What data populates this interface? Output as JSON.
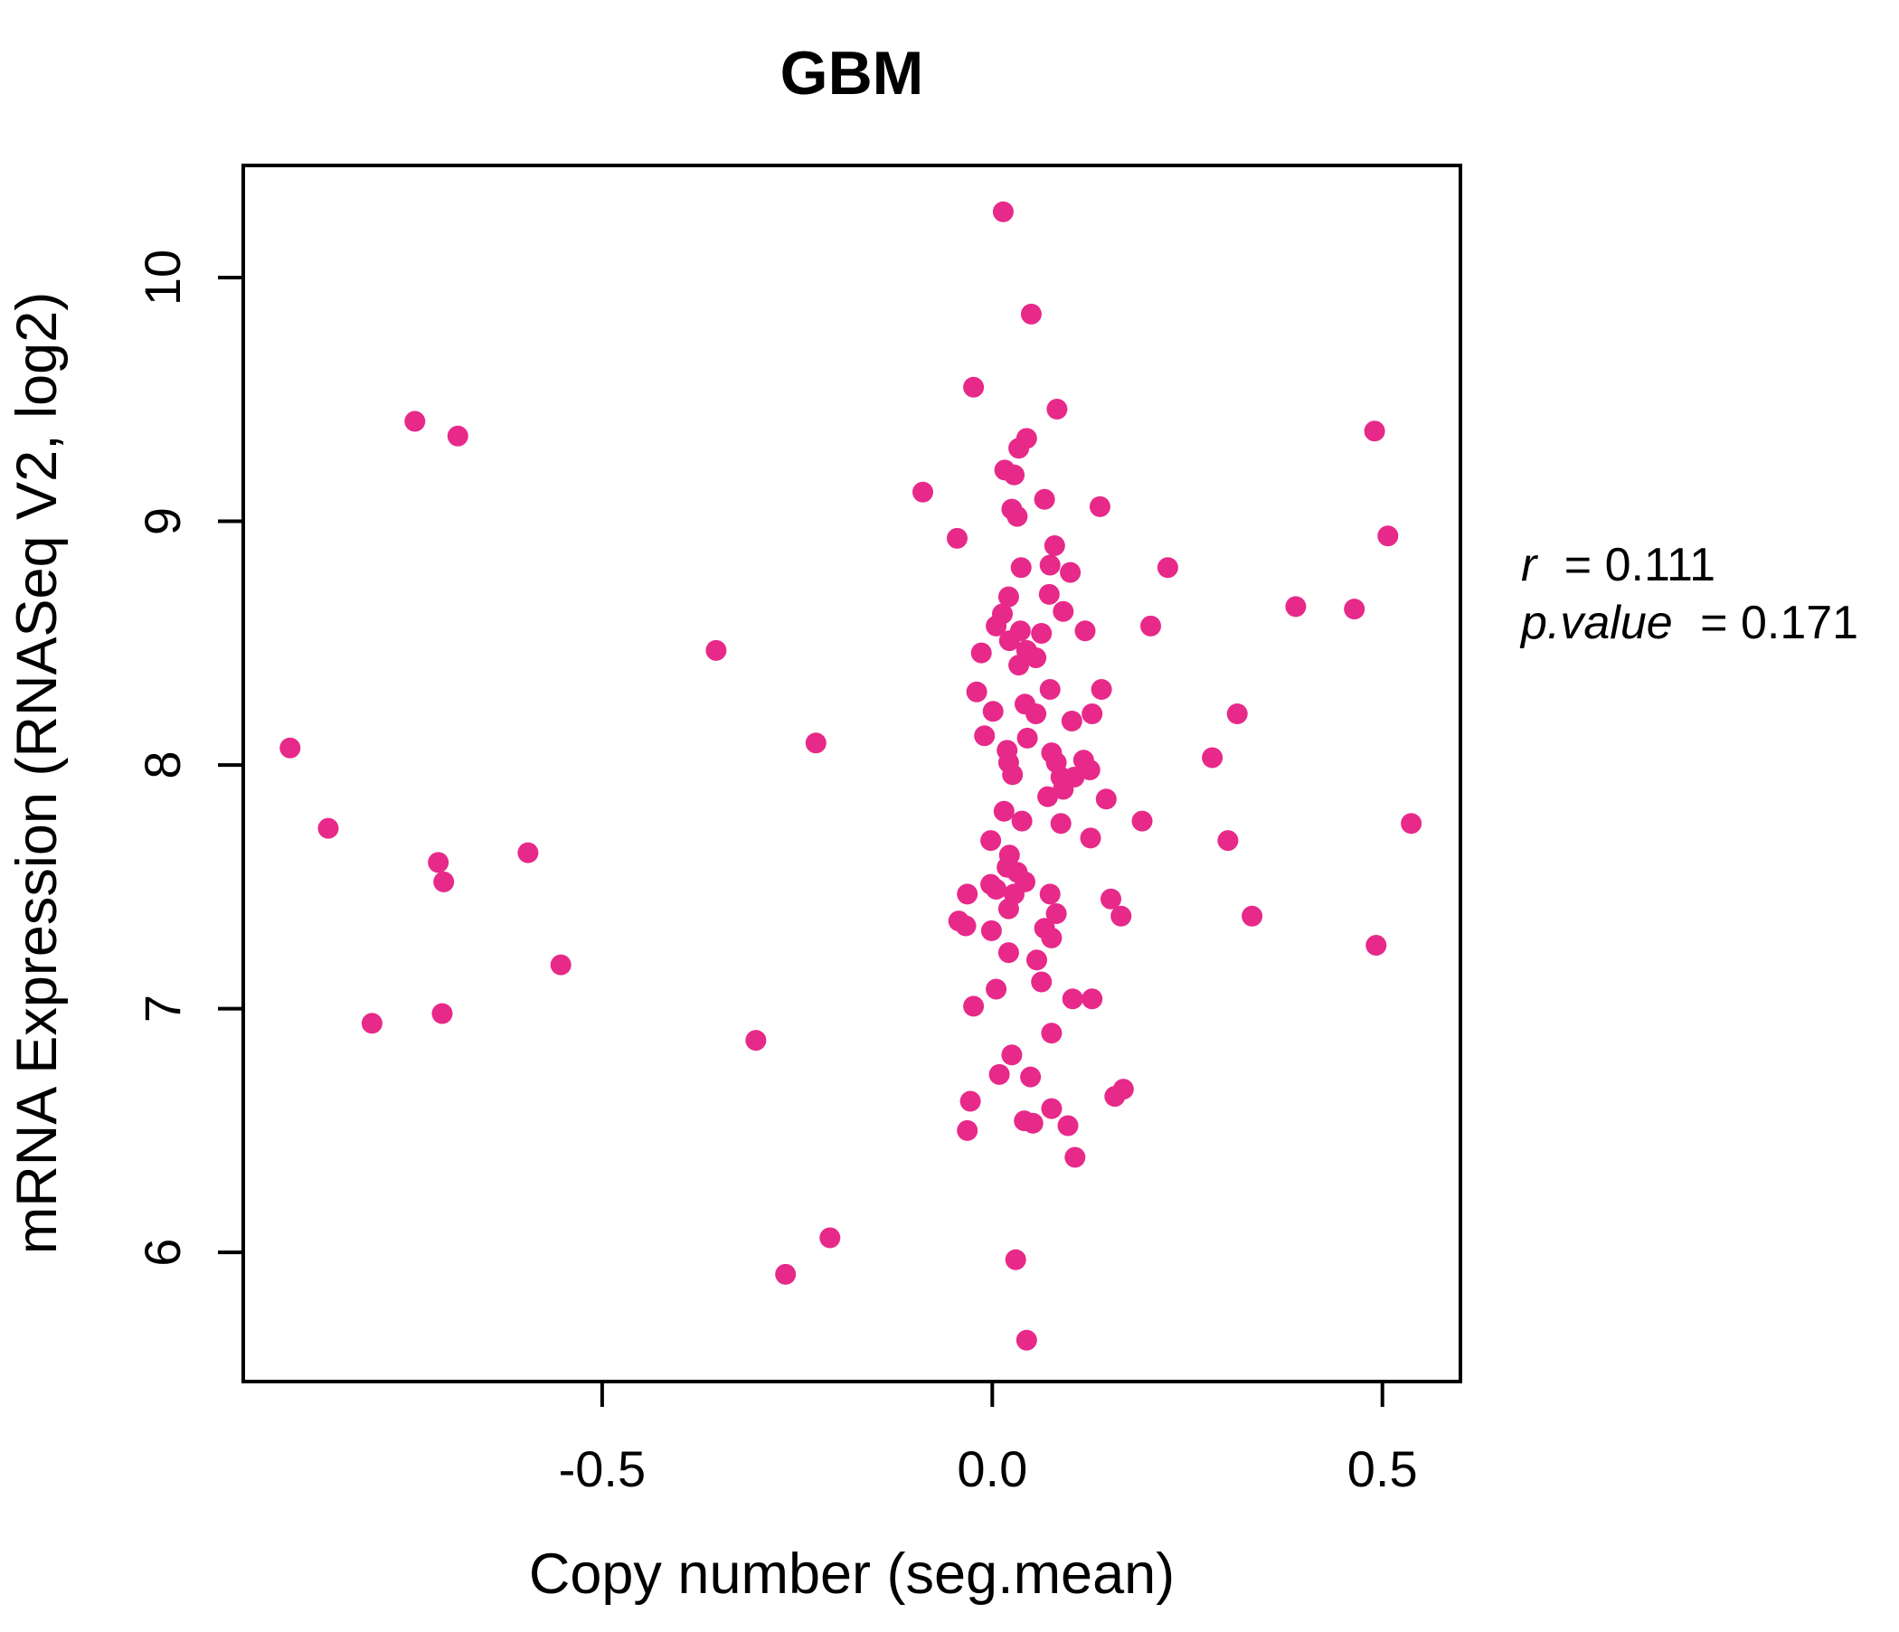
{
  "chart_data": {
    "type": "scatter",
    "title": "GBM",
    "xlabel": "Copy number (seg.mean)",
    "ylabel": "mRNA Expression (RNASeq V2, log2)",
    "xlim": [
      -0.96,
      0.6
    ],
    "ylim": [
      5.47,
      10.46
    ],
    "grid": false,
    "point_color": "#E7298A",
    "title_color": "#E7298A",
    "point_radius_px": 11.5,
    "x_ticks": [
      {
        "value": -0.5,
        "label": "-0.5"
      },
      {
        "value": 0.0,
        "label": "0.0"
      },
      {
        "value": 0.5,
        "label": "0.5"
      }
    ],
    "y_ticks": [
      {
        "value": 6,
        "label": "6"
      },
      {
        "value": 7,
        "label": "7"
      },
      {
        "value": 8,
        "label": "8"
      },
      {
        "value": 9,
        "label": "9"
      },
      {
        "value": 10,
        "label": "10"
      }
    ],
    "annotation": {
      "r_var": "r",
      "r_value": "= 0.111",
      "p_var": "p.value",
      "p_value": "= 0.171"
    },
    "points": [
      [
        -0.74,
        9.41
      ],
      [
        -0.685,
        9.35
      ],
      [
        -0.9,
        8.07
      ],
      [
        -0.851,
        7.74
      ],
      [
        -0.71,
        7.6
      ],
      [
        -0.703,
        7.52
      ],
      [
        -0.595,
        7.64
      ],
      [
        -0.553,
        7.18
      ],
      [
        -0.795,
        6.94
      ],
      [
        -0.705,
        6.98
      ],
      [
        -0.354,
        8.47
      ],
      [
        -0.226,
        8.09
      ],
      [
        -0.303,
        6.87
      ],
      [
        -0.208,
        6.06
      ],
      [
        -0.265,
        5.91
      ],
      [
        0.49,
        9.37
      ],
      [
        0.507,
        8.94
      ],
      [
        0.389,
        8.65
      ],
      [
        0.464,
        8.64
      ],
      [
        0.314,
        8.21
      ],
      [
        0.282,
        8.03
      ],
      [
        0.537,
        7.76
      ],
      [
        0.302,
        7.69
      ],
      [
        0.333,
        7.38
      ],
      [
        0.492,
        7.26
      ],
      [
        0.014,
        10.27
      ],
      [
        0.05,
        9.85
      ],
      [
        -0.024,
        9.55
      ],
      [
        0.083,
        9.46
      ],
      [
        0.044,
        9.34
      ],
      [
        0.034,
        9.3
      ],
      [
        0.016,
        9.21
      ],
      [
        0.028,
        9.19
      ],
      [
        -0.089,
        9.12
      ],
      [
        0.067,
        9.09
      ],
      [
        0.138,
        9.06
      ],
      [
        0.025,
        9.05
      ],
      [
        0.032,
        9.02
      ],
      [
        -0.045,
        8.93
      ],
      [
        0.08,
        8.9
      ],
      [
        0.074,
        8.82
      ],
      [
        0.037,
        8.81
      ],
      [
        0.1,
        8.79
      ],
      [
        0.225,
        8.81
      ],
      [
        0.021,
        8.69
      ],
      [
        0.073,
        8.7
      ],
      [
        0.091,
        8.63
      ],
      [
        0.013,
        8.62
      ],
      [
        0.005,
        8.57
      ],
      [
        0.119,
        8.55
      ],
      [
        0.203,
        8.57
      ],
      [
        0.036,
        8.55
      ],
      [
        0.063,
        8.54
      ],
      [
        0.022,
        8.51
      ],
      [
        -0.014,
        8.46
      ],
      [
        0.044,
        8.47
      ],
      [
        0.056,
        8.44
      ],
      [
        0.034,
        8.41
      ],
      [
        -0.02,
        8.3
      ],
      [
        0.14,
        8.31
      ],
      [
        0.074,
        8.31
      ],
      [
        0.042,
        8.25
      ],
      [
        0.001,
        8.22
      ],
      [
        0.056,
        8.21
      ],
      [
        0.102,
        8.18
      ],
      [
        0.128,
        8.21
      ],
      [
        -0.01,
        8.12
      ],
      [
        0.045,
        8.11
      ],
      [
        0.019,
        8.06
      ],
      [
        0.021,
        8.01
      ],
      [
        0.026,
        7.96
      ],
      [
        0.076,
        8.05
      ],
      [
        0.082,
        8.01
      ],
      [
        0.117,
        8.02
      ],
      [
        0.125,
        7.98
      ],
      [
        0.088,
        7.95
      ],
      [
        0.105,
        7.95
      ],
      [
        0.071,
        7.87
      ],
      [
        0.091,
        7.9
      ],
      [
        0.146,
        7.86
      ],
      [
        0.015,
        7.81
      ],
      [
        0.192,
        7.77
      ],
      [
        0.088,
        7.76
      ],
      [
        0.038,
        7.77
      ],
      [
        0.126,
        7.7
      ],
      [
        -0.002,
        7.69
      ],
      [
        0.022,
        7.63
      ],
      [
        0.019,
        7.58
      ],
      [
        0.032,
        7.56
      ],
      [
        -0.002,
        7.51
      ],
      [
        0.005,
        7.49
      ],
      [
        0.042,
        7.52
      ],
      [
        0.028,
        7.47
      ],
      [
        -0.032,
        7.47
      ],
      [
        0.074,
        7.47
      ],
      [
        0.021,
        7.41
      ],
      [
        0.152,
        7.45
      ],
      [
        0.165,
        7.38
      ],
      [
        -0.043,
        7.36
      ],
      [
        -0.034,
        7.34
      ],
      [
        -0.001,
        7.32
      ],
      [
        0.082,
        7.39
      ],
      [
        0.067,
        7.33
      ],
      [
        0.076,
        7.29
      ],
      [
        0.021,
        7.23
      ],
      [
        0.057,
        7.2
      ],
      [
        0.063,
        7.11
      ],
      [
        0.005,
        7.08
      ],
      [
        -0.024,
        7.01
      ],
      [
        0.103,
        7.04
      ],
      [
        0.128,
        7.04
      ],
      [
        0.076,
        6.9
      ],
      [
        0.025,
        6.81
      ],
      [
        0.009,
        6.73
      ],
      [
        0.049,
        6.72
      ],
      [
        -0.028,
        6.62
      ],
      [
        0.076,
        6.59
      ],
      [
        0.157,
        6.64
      ],
      [
        0.168,
        6.67
      ],
      [
        0.041,
        6.54
      ],
      [
        0.052,
        6.53
      ],
      [
        -0.032,
        6.5
      ],
      [
        0.097,
        6.52
      ],
      [
        0.106,
        6.39
      ],
      [
        0.03,
        5.97
      ],
      [
        0.044,
        5.64
      ]
    ]
  }
}
